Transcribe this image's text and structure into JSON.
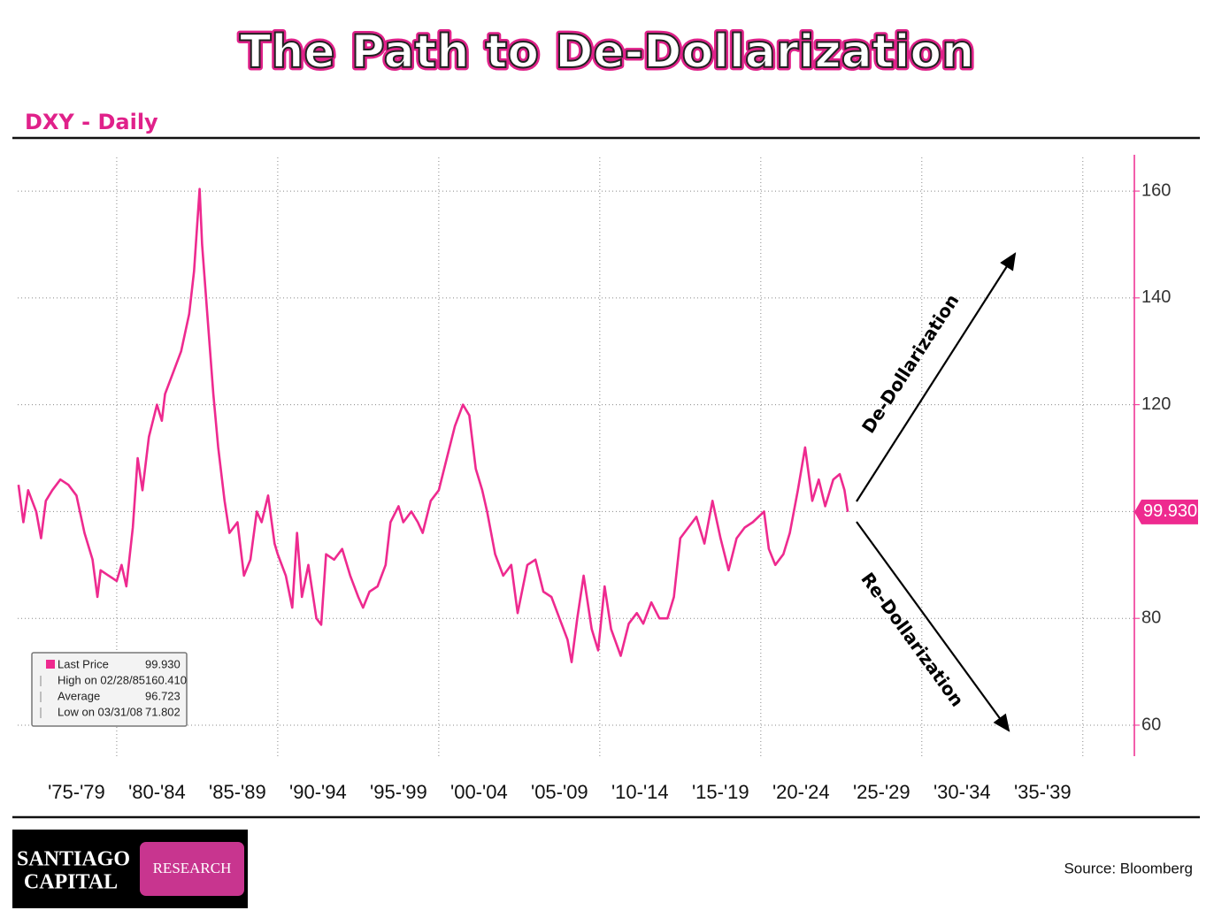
{
  "chart_data": {
    "type": "line",
    "title": "The Path to De-Dollarization",
    "subtitle": "DXY - Daily",
    "x": [
      1973.9,
      1974.2,
      1974.5,
      1975,
      1975.3,
      1975.6,
      1976,
      1976.5,
      1977,
      1977.5,
      1978,
      1978.5,
      1978.8,
      1979,
      1979.5,
      1980,
      1980.3,
      1980.6,
      1981,
      1981.3,
      1981.6,
      1982,
      1982.5,
      1982.8,
      1983,
      1983.5,
      1984,
      1984.5,
      1984.8,
      1985.15,
      1985.3,
      1985.6,
      1986,
      1986.3,
      1986.7,
      1987,
      1987.5,
      1987.9,
      1988.3,
      1988.7,
      1989,
      1989.4,
      1989.8,
      1990,
      1990.5,
      1990.9,
      1991.2,
      1991.5,
      1991.9,
      1992.4,
      1992.7,
      1993,
      1993.5,
      1994,
      1994.5,
      1995,
      1995.3,
      1995.7,
      1996.2,
      1996.7,
      1997,
      1997.5,
      1997.8,
      1998.3,
      1998.7,
      1999,
      1999.5,
      2000,
      2000.5,
      2001,
      2001.5,
      2001.9,
      2002.3,
      2002.7,
      2003,
      2003.5,
      2004,
      2004.5,
      2004.9,
      2005.5,
      2006,
      2006.5,
      2007,
      2007.5,
      2008,
      2008.25,
      2008.6,
      2009,
      2009.5,
      2009.9,
      2010.3,
      2010.7,
      2011.3,
      2011.8,
      2012.3,
      2012.7,
      2013.2,
      2013.7,
      2014.2,
      2014.6,
      2015,
      2015.5,
      2016,
      2016.5,
      2017,
      2017.5,
      2018,
      2018.5,
      2019,
      2019.5,
      2020.2,
      2020.5,
      2020.9,
      2021.4,
      2021.8,
      2022.3,
      2022.75,
      2023.2,
      2023.6,
      2024,
      2024.5,
      2024.9,
      2025.2,
      2025.4
    ],
    "series": [
      {
        "color": "#ee2a8f",
        "values": [
          105,
          98,
          104,
          100,
          95,
          102,
          104,
          106,
          105,
          103,
          96,
          91,
          84,
          89,
          88,
          87,
          90,
          86,
          97,
          110,
          104,
          114,
          120,
          117,
          122,
          126,
          130,
          137,
          145,
          160.4,
          150,
          138,
          122,
          112,
          102,
          96,
          98,
          88,
          91,
          100,
          98,
          103,
          94,
          92,
          88,
          82,
          96,
          84,
          90,
          80,
          78.8,
          92,
          91,
          93,
          88,
          84,
          82,
          85,
          86,
          90,
          98,
          101,
          98,
          100,
          98,
          96,
          102,
          104,
          110,
          116,
          120,
          118,
          108,
          104,
          100,
          92,
          88,
          90,
          81,
          90,
          91,
          85,
          84,
          80,
          76,
          71.8,
          80,
          88,
          78,
          74,
          86,
          78,
          73,
          79,
          81,
          79,
          83,
          80,
          80,
          84,
          95,
          97,
          99,
          94,
          102,
          95,
          89,
          95,
          97,
          98,
          100,
          93,
          90,
          92,
          96,
          104,
          112,
          102,
          106,
          101,
          106,
          107,
          104,
          99.93
        ]
      }
    ],
    "last_value_label": "99.930",
    "xlim": [
      1973.85,
      2043.2
    ],
    "xticks": [
      {
        "value": 1977.5,
        "label": "'75-'79"
      },
      {
        "value": 1982.5,
        "label": "'80-'84"
      },
      {
        "value": 1987.5,
        "label": "'85-'89"
      },
      {
        "value": 1992.5,
        "label": "'90-'94"
      },
      {
        "value": 1997.5,
        "label": "'95-'99"
      },
      {
        "value": 2002.5,
        "label": "'00-'04"
      },
      {
        "value": 2007.5,
        "label": "'05-'09"
      },
      {
        "value": 2012.5,
        "label": "'10-'14"
      },
      {
        "value": 2017.5,
        "label": "'15-'19"
      },
      {
        "value": 2022.5,
        "label": "'20-'24"
      },
      {
        "value": 2027.5,
        "label": "'25-'29"
      },
      {
        "value": 2032.5,
        "label": "'30-'34"
      },
      {
        "value": 2037.5,
        "label": "'35-'39"
      }
    ],
    "xgrid": [
      1980,
      1990,
      2000,
      2010,
      2020,
      2030,
      2040
    ],
    "ylim": [
      54.2,
      166.8
    ],
    "yticks": [
      60,
      80,
      100,
      120,
      140,
      160
    ],
    "grid": true,
    "stats": [
      {
        "label": "Last Price",
        "value": "99.930"
      },
      {
        "label": "High on 02/28/85",
        "value": "160.410"
      },
      {
        "label": "Average",
        "value": "96.723"
      },
      {
        "label": "Low on 03/31/08",
        "value": "71.802"
      }
    ],
    "annotations": [
      "De-Dollarization",
      "Re-Dollarization"
    ]
  },
  "footer": {
    "logo_lines": [
      "SANTIAGO",
      "CAPITAL"
    ],
    "logo_tag": "RESEARCH",
    "source": "Source: Bloomberg"
  }
}
